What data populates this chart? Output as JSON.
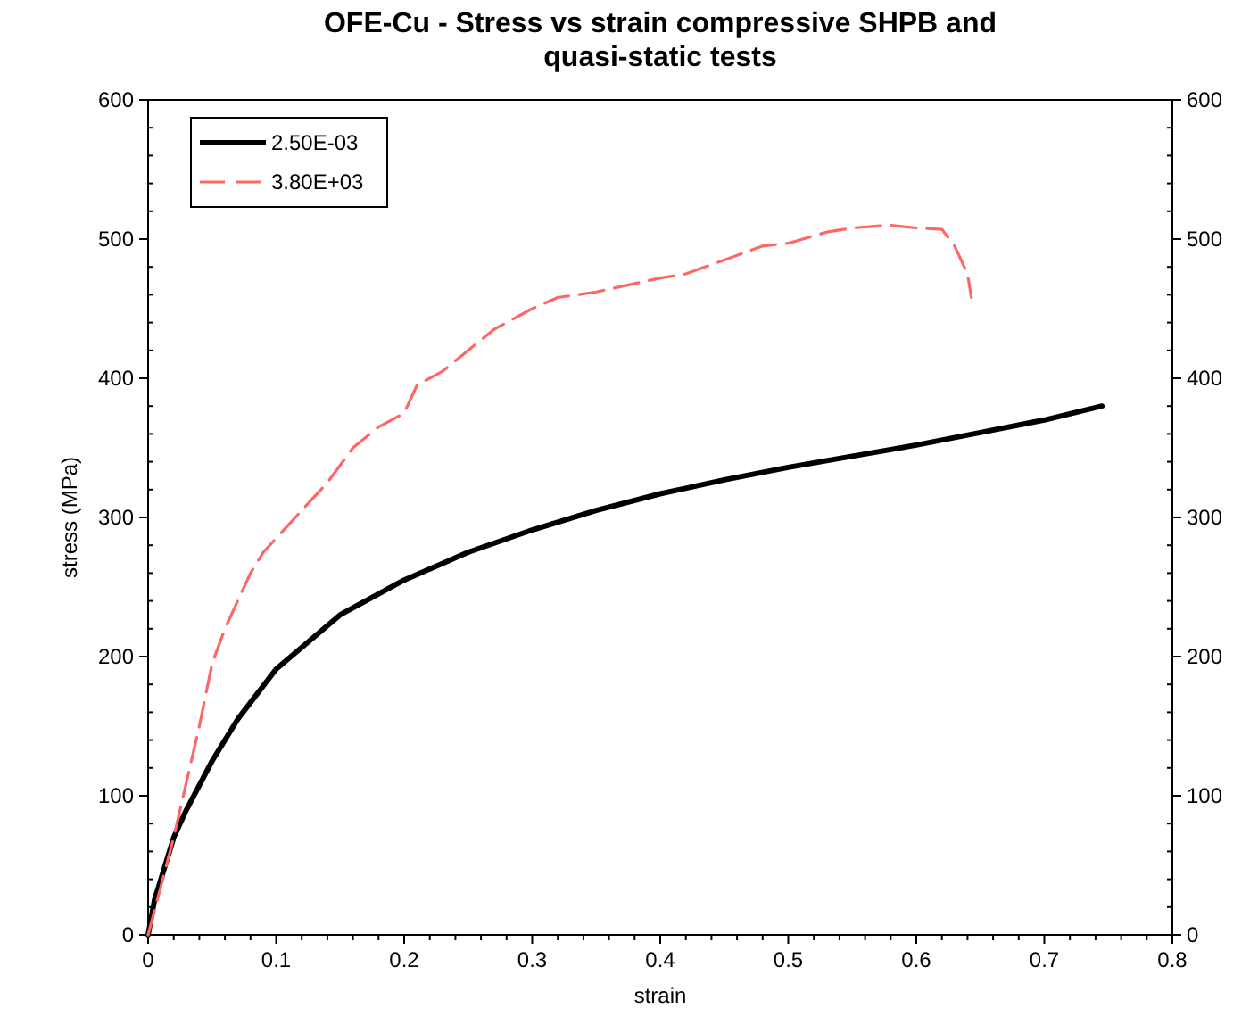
{
  "chart_data": {
    "type": "line",
    "title": "OFE-Cu - Stress vs strain compressive SHPB and quasi-static tests",
    "xlabel": "strain",
    "ylabel": "stress (MPa)",
    "xlim": [
      0,
      0.8
    ],
    "xticks": [
      0,
      0.1,
      0.2,
      0.3,
      0.4,
      0.5,
      0.6,
      0.7,
      0.8
    ],
    "ylim": [
      0,
      600
    ],
    "yticks": [
      0,
      100,
      200,
      300,
      400,
      500,
      600
    ],
    "y2lim": [
      0,
      600
    ],
    "y2ticks": [
      0,
      100,
      200,
      300,
      400,
      500,
      600
    ],
    "legend": "top left",
    "grid": false,
    "marker": "none",
    "series": [
      {
        "name": "2.50E-03",
        "color": "#000000",
        "line_style": "solid",
        "x": [
          0,
          0.005,
          0.01,
          0.02,
          0.03,
          0.05,
          0.07,
          0.1,
          0.15,
          0.2,
          0.25,
          0.3,
          0.35,
          0.4,
          0.45,
          0.5,
          0.55,
          0.6,
          0.65,
          0.7,
          0.745
        ],
        "values": [
          0,
          25,
          40,
          70,
          90,
          125,
          155,
          191,
          230,
          255,
          275,
          291,
          305,
          317,
          327,
          336,
          344,
          352,
          361,
          370,
          380
        ]
      },
      {
        "name": "3.80E+03",
        "color": "#ff6666",
        "line_style": "dashed",
        "x": [
          0,
          0.01,
          0.02,
          0.03,
          0.04,
          0.05,
          0.06,
          0.07,
          0.08,
          0.09,
          0.1,
          0.12,
          0.14,
          0.16,
          0.18,
          0.2,
          0.21,
          0.23,
          0.25,
          0.27,
          0.3,
          0.32,
          0.35,
          0.38,
          0.4,
          0.42,
          0.45,
          0.48,
          0.5,
          0.53,
          0.55,
          0.58,
          0.6,
          0.62,
          0.63,
          0.64,
          0.643
        ],
        "values": [
          0,
          35,
          70,
          110,
          150,
          195,
          220,
          240,
          260,
          275,
          285,
          305,
          325,
          350,
          365,
          375,
          395,
          405,
          420,
          435,
          450,
          458,
          462,
          468,
          472,
          475,
          485,
          495,
          497,
          505,
          508,
          510,
          508,
          507,
          495,
          475,
          458
        ]
      }
    ]
  }
}
